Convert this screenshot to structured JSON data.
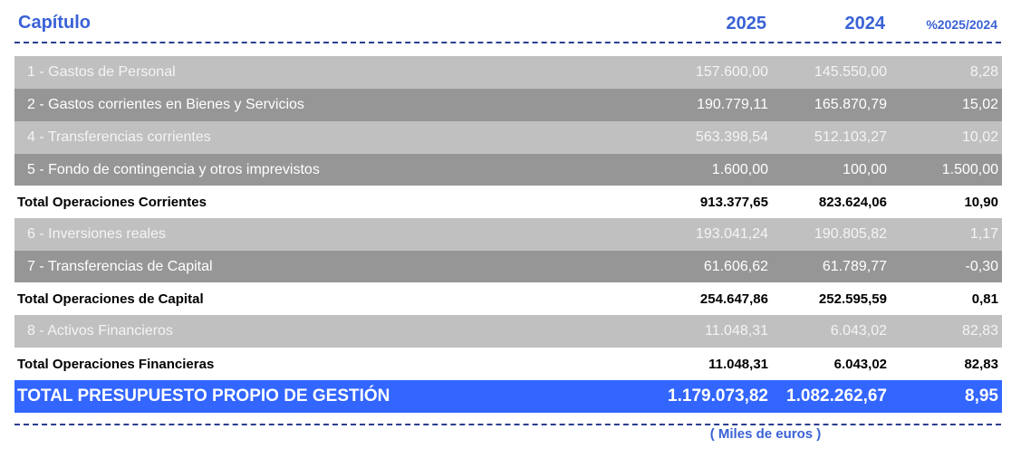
{
  "header": {
    "title": "Capítulo",
    "columns": [
      "2025",
      "2024",
      "%2025/2024"
    ]
  },
  "rows": [
    [
      "1 - Gastos de Personal",
      "157.600,00",
      "145.550,00",
      "8,28"
    ],
    [
      "2 - Gastos corrientes en Bienes y Servicios",
      "190.779,11",
      "165.870,79",
      "15,02"
    ],
    [
      "4 - Transferencias corrientes",
      "563.398,54",
      "512.103,27",
      "10,02"
    ],
    [
      "5 - Fondo de contingencia y otros imprevistos",
      "1.600,00",
      "100,00",
      "1.500,00"
    ],
    [
      "Total Operaciones Corrientes",
      "913.377,65",
      "823.624,06",
      "10,90"
    ],
    [
      "6 - Inversiones reales",
      "193.041,24",
      "190.805,82",
      "1,17"
    ],
    [
      "7 - Transferencias de Capital",
      "61.606,62",
      "61.789,77",
      "-0,30"
    ],
    [
      "Total Operaciones de Capital",
      "254.647,86",
      "252.595,59",
      "0,81"
    ],
    [
      "8 - Activos Financieros",
      "11.048,31",
      "6.043,02",
      "82,83"
    ],
    [
      "Total Operaciones Financieras",
      "11.048,31",
      "6.043,02",
      "82,83"
    ],
    [
      "TOTAL PRESUPUESTO PROPIO DE GESTIÓN",
      "1.179.073,82",
      "1.082.262,67",
      "8,95"
    ]
  ],
  "footnote": "( Miles de euros )"
}
